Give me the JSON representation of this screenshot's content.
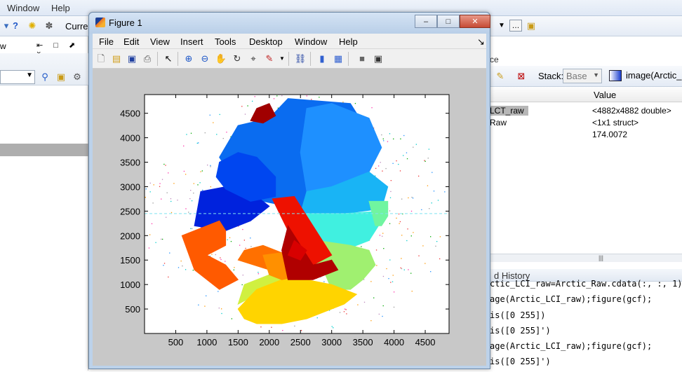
{
  "desktop": {
    "menu": [
      "Window",
      "Help"
    ],
    "toolbar_current_label": "Curre",
    "left_panel_title": "w"
  },
  "workspace": {
    "header": "ce",
    "stack_label": "Stack:",
    "stack_value": "Base",
    "image_button": "image(Arctic_L",
    "value_column": "Value",
    "rows": [
      {
        "name": "LCT_raw",
        "value": "<4882x4882 double>"
      },
      {
        "name": "Raw",
        "value": "<1x1 struct>"
      },
      {
        "name": "",
        "value": "174.0072"
      }
    ]
  },
  "history": {
    "header": "d History",
    "lines": [
      "ctic_LCI_raw=Arctic_Raw.cdata(:, :, 1);",
      "age(Arctic_LCI_raw);figure(gcf);",
      "is([0 255])",
      "is([0 255]')",
      "age(Arctic_LCI_raw);figure(gcf);",
      "is([0 255]')"
    ]
  },
  "figure": {
    "title": "Figure 1",
    "menu": [
      "File",
      "Edit",
      "View",
      "Insert",
      "Tools",
      "Desktop",
      "Window",
      "Help"
    ],
    "toolbar_icons": [
      "new-figure-icon",
      "open-icon",
      "save-icon",
      "print-icon",
      "pointer-icon",
      "zoom-in-icon",
      "zoom-out-icon",
      "pan-icon",
      "rotate-icon",
      "data-cursor-icon",
      "brush-icon",
      "link-icon",
      "colorbar-icon",
      "legend-icon",
      "hide-plot-tools-icon",
      "show-plot-tools-icon"
    ],
    "controls": {
      "minimize": "–",
      "maximize": "□",
      "close": "✕"
    }
  },
  "chart_data": {
    "type": "heatmap",
    "title": "",
    "xlabel": "",
    "ylabel": "",
    "xlim": [
      0,
      4882
    ],
    "ylim": [
      0,
      4882
    ],
    "x_ticks": [
      500,
      1000,
      1500,
      2000,
      2500,
      3000,
      3500,
      4000,
      4500
    ],
    "y_ticks": [
      500,
      1000,
      1500,
      2000,
      2500,
      3000,
      3500,
      4000,
      4500
    ],
    "colormap": "jet",
    "clim": [
      0,
      255
    ],
    "grid": false,
    "regions": [
      {
        "color": "#0a6cf0",
        "polygon": [
          [
            1500,
            4250
          ],
          [
            2000,
            4400
          ],
          [
            2300,
            4800
          ],
          [
            3300,
            4700
          ],
          [
            3500,
            4300
          ],
          [
            3100,
            4000
          ],
          [
            2600,
            3700
          ],
          [
            2600,
            2500
          ],
          [
            2300,
            2600
          ],
          [
            1900,
            2700
          ],
          [
            1500,
            3000
          ],
          [
            1200,
            3600
          ]
        ]
      },
      {
        "color": "#1e90ff",
        "polygon": [
          [
            2600,
            4600
          ],
          [
            3000,
            4700
          ],
          [
            3600,
            4400
          ],
          [
            3800,
            3800
          ],
          [
            3600,
            3300
          ],
          [
            3000,
            3000
          ],
          [
            2600,
            2900
          ],
          [
            2500,
            3700
          ]
        ]
      },
      {
        "color": "#19b4f5",
        "polygon": [
          [
            2600,
            2900
          ],
          [
            3000,
            3000
          ],
          [
            3600,
            3300
          ],
          [
            3900,
            3000
          ],
          [
            3800,
            2550
          ],
          [
            3200,
            2450
          ],
          [
            2500,
            2450
          ]
        ]
      },
      {
        "color": "#0022dd",
        "polygon": [
          [
            900,
            2900
          ],
          [
            1300,
            3000
          ],
          [
            1800,
            2800
          ],
          [
            2000,
            2600
          ],
          [
            1700,
            2300
          ],
          [
            1300,
            2100
          ],
          [
            800,
            2200
          ]
        ]
      },
      {
        "color": "#0046f0",
        "polygon": [
          [
            1200,
            3500
          ],
          [
            1500,
            3700
          ],
          [
            1800,
            3600
          ],
          [
            2100,
            3200
          ],
          [
            2100,
            2800
          ],
          [
            1700,
            2700
          ],
          [
            1300,
            2950
          ],
          [
            1150,
            3200
          ]
        ]
      },
      {
        "color": "#40f0e0",
        "polygon": [
          [
            2500,
            2450
          ],
          [
            3200,
            2450
          ],
          [
            3800,
            2500
          ],
          [
            3800,
            2300
          ],
          [
            3600,
            1900
          ],
          [
            3200,
            1700
          ],
          [
            2600,
            1900
          ]
        ]
      },
      {
        "color": "#70f5a0",
        "polygon": [
          [
            3600,
            2700
          ],
          [
            3900,
            2700
          ],
          [
            3900,
            2400
          ],
          [
            3800,
            2200
          ],
          [
            3700,
            2200
          ]
        ]
      },
      {
        "color": "#a0f070",
        "polygon": [
          [
            2500,
            1950
          ],
          [
            3300,
            1800
          ],
          [
            3600,
            1700
          ],
          [
            3700,
            1400
          ],
          [
            3500,
            1100
          ],
          [
            3300,
            900
          ],
          [
            3000,
            900
          ],
          [
            2900,
            1200
          ],
          [
            2500,
            1300
          ]
        ]
      },
      {
        "color": "#d0f040",
        "polygon": [
          [
            1600,
            1000
          ],
          [
            2000,
            1200
          ],
          [
            2400,
            1100
          ],
          [
            2200,
            900
          ],
          [
            1800,
            800
          ],
          [
            1500,
            600
          ]
        ]
      },
      {
        "color": "#ffd400",
        "polygon": [
          [
            1800,
            900
          ],
          [
            2200,
            1100
          ],
          [
            2600,
            1100
          ],
          [
            3000,
            1000
          ],
          [
            3400,
            800
          ],
          [
            3200,
            600
          ],
          [
            2600,
            300
          ],
          [
            2200,
            200
          ],
          [
            1800,
            200
          ],
          [
            1600,
            300
          ],
          [
            1500,
            500
          ]
        ]
      },
      {
        "color": "#ff5a00",
        "polygon": [
          [
            600,
            2000
          ],
          [
            1200,
            2300
          ],
          [
            1300,
            2100
          ],
          [
            1300,
            1800
          ],
          [
            1000,
            1600
          ],
          [
            1300,
            1400
          ],
          [
            1500,
            1100
          ],
          [
            1200,
            900
          ],
          [
            800,
            1300
          ]
        ]
      },
      {
        "color": "#ff7000",
        "polygon": [
          [
            1500,
            1500
          ],
          [
            2000,
            1300
          ],
          [
            2200,
            1150
          ],
          [
            2400,
            1200
          ],
          [
            2300,
            1600
          ],
          [
            1900,
            1800
          ],
          [
            1600,
            1700
          ]
        ]
      },
      {
        "color": "#ff9000",
        "polygon": [
          [
            1900,
            1600
          ],
          [
            2200,
            1650
          ],
          [
            2400,
            1500
          ],
          [
            2400,
            1150
          ],
          [
            2200,
            1100
          ],
          [
            2000,
            1200
          ]
        ]
      },
      {
        "color": "#ee1100",
        "polygon": [
          [
            2050,
            2750
          ],
          [
            2400,
            2800
          ],
          [
            3000,
            1600
          ],
          [
            2700,
            1400
          ],
          [
            2300,
            2100
          ]
        ]
      },
      {
        "color": "#b00000",
        "polygon": [
          [
            2300,
            2200
          ],
          [
            2700,
            1400
          ],
          [
            3000,
            1500
          ],
          [
            3100,
            1300
          ],
          [
            2700,
            1100
          ],
          [
            2300,
            1100
          ],
          [
            2200,
            1700
          ]
        ]
      },
      {
        "color": "#d80000",
        "polygon": [
          [
            2400,
            1900
          ],
          [
            2600,
            1700
          ],
          [
            2500,
            1500
          ],
          [
            2300,
            1600
          ]
        ]
      },
      {
        "color": "#a00000",
        "polygon": [
          [
            1800,
            4600
          ],
          [
            2000,
            4700
          ],
          [
            2100,
            4450
          ],
          [
            1900,
            4300
          ],
          [
            1700,
            4350
          ]
        ]
      }
    ],
    "dashed_line_y": 2450
  }
}
